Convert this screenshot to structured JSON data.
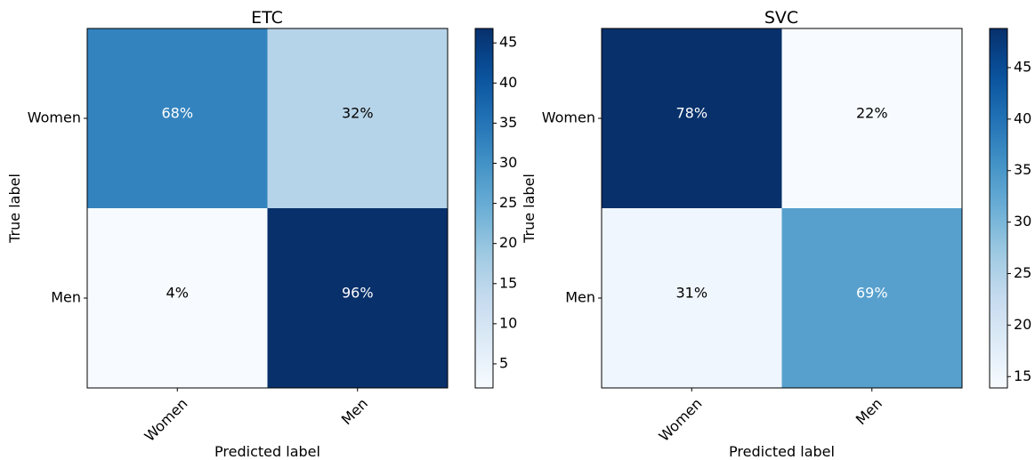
{
  "chart_data": [
    {
      "type": "heatmap",
      "title": "ETC",
      "xlabel": "Predicted label",
      "ylabel": "True label",
      "x_categories": [
        "Women",
        "Men"
      ],
      "y_categories": [
        "Women",
        "Men"
      ],
      "cell_labels": [
        [
          "68%",
          "32%"
        ],
        [
          "4%",
          "96%"
        ]
      ],
      "values": [
        [
          32.5,
          15.5
        ],
        [
          2.0,
          46.8
        ]
      ],
      "colorbar": {
        "range": [
          2.0,
          46.8
        ],
        "ticks": [
          5,
          10,
          15,
          20,
          25,
          30,
          35,
          40,
          45
        ],
        "colormap": "Blues"
      }
    },
    {
      "type": "heatmap",
      "title": "SVC",
      "xlabel": "Predicted label",
      "ylabel": "True label",
      "x_categories": [
        "Women",
        "Men"
      ],
      "y_categories": [
        "Women",
        "Men"
      ],
      "cell_labels": [
        [
          "78%",
          "22%"
        ],
        [
          "31%",
          "69%"
        ]
      ],
      "values": [
        [
          48.8,
          13.9
        ],
        [
          15.2,
          33.5
        ]
      ],
      "colorbar": {
        "range": [
          13.9,
          48.8
        ],
        "ticks": [
          15,
          20,
          25,
          30,
          35,
          40,
          45
        ],
        "colormap": "Blues"
      }
    }
  ],
  "colors": {
    "blues_light": "#f7fbff",
    "blues_dark": "#08306b",
    "axis": "#000000",
    "text_light": "#ffffff",
    "text_dark": "#000000"
  }
}
